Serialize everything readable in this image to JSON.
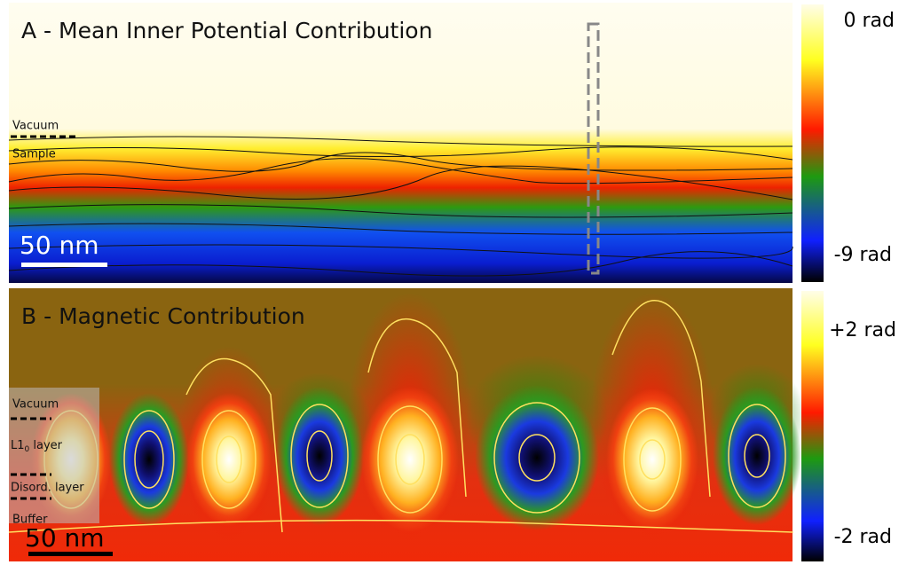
{
  "panels": [
    {
      "title": "A - Mean Inner Potential Contribution",
      "scale_bar": "50 nm",
      "layers": [
        "Vacuum",
        "Sample"
      ],
      "colorbar": {
        "top": "0 rad",
        "bottom": "-9 rad"
      }
    },
    {
      "title": "B - Magnetic Contribution",
      "scale_bar": "50 nm",
      "layers": [
        "Vacuum",
        {
          "text": "L1",
          "subscript": "0",
          "suffix": " layer"
        },
        "Disord. layer",
        "Buffer"
      ],
      "colorbar": {
        "top": "+2 rad",
        "bottom": "-2 rad"
      }
    }
  ]
}
